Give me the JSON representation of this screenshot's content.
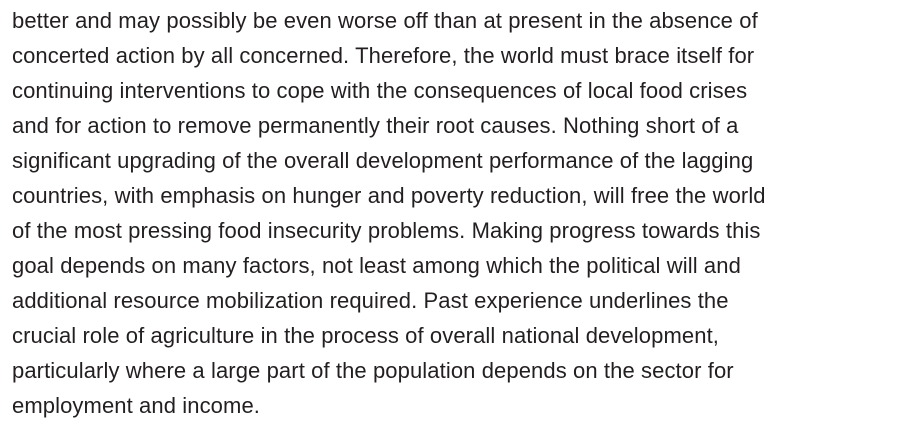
{
  "paragraph": {
    "lines": [
      "better and may possibly be even worse off than at present in the absence of",
      "concerted action by all concerned. Therefore, the world must brace itself for",
      "continuing interventions to cope with the consequences of local food crises",
      "and for action to remove permanently their root causes. Nothing short of a",
      "significant upgrading of the overall development performance of the lagging",
      "countries, with emphasis on hunger and poverty reduction, will free the world",
      "of the most pressing food insecurity problems. Making progress towards this",
      "goal depends on many factors, not least among which the political will and",
      "additional resource mobilization required. Past experience underlines the",
      "crucial role of agriculture in the process of overall national development,",
      "particularly where a large part of the population depends on the sector for",
      "employment and income."
    ]
  }
}
